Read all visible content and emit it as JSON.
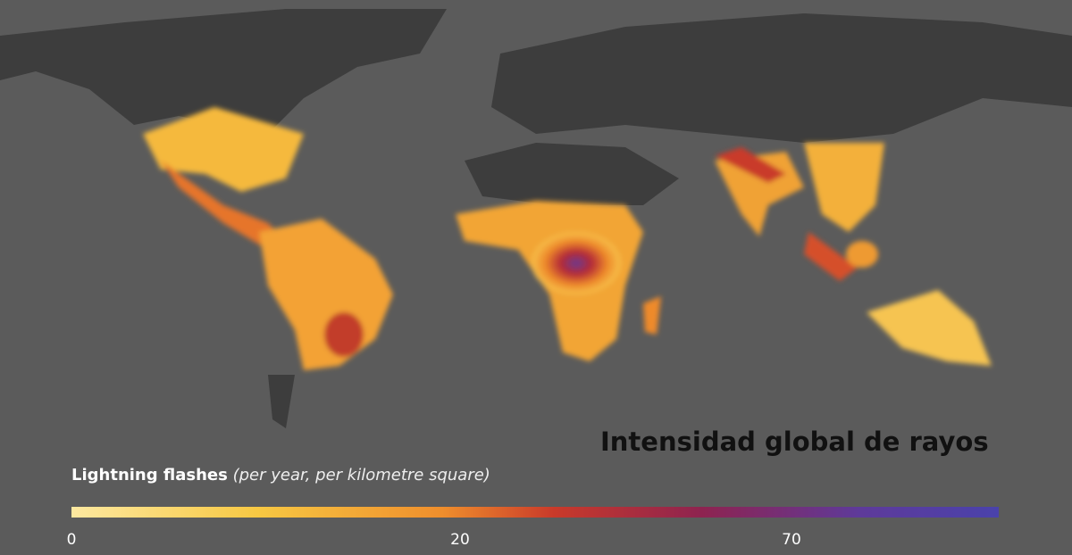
{
  "title": "Intensidad global de rayos",
  "legend": {
    "label": "Lightning flashes",
    "unit": "(per year, per kilometre square)",
    "ticks": [
      0,
      20,
      70
    ]
  }
}
